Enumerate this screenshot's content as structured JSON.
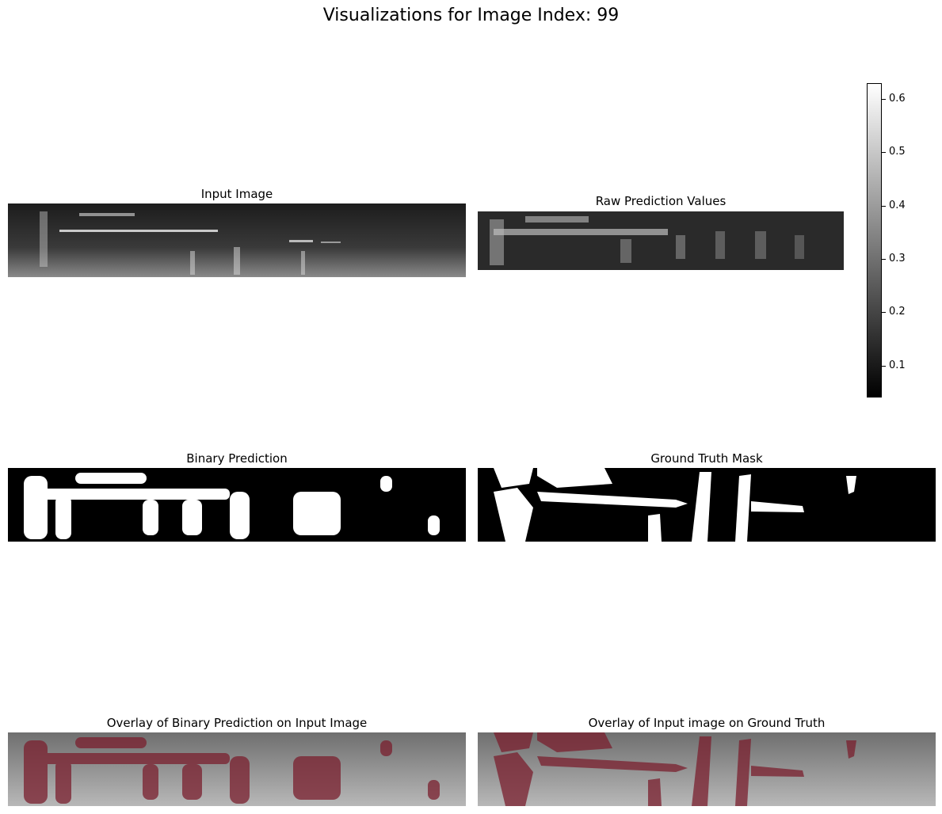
{
  "suptitle": "Visualizations for Image Index: 99",
  "panels": {
    "input_image": {
      "title": "Input Image"
    },
    "raw_prediction": {
      "title": "Raw Prediction Values"
    },
    "binary_prediction": {
      "title": "Binary Prediction"
    },
    "ground_truth": {
      "title": "Ground Truth Mask"
    },
    "overlay_prediction": {
      "title": "Overlay of Binary Prediction on Input Image"
    },
    "overlay_ground_truth": {
      "title": "Overlay of Input image on Ground Truth"
    }
  },
  "colorbar": {
    "colormap": "gray",
    "min": 0.04,
    "max": 0.63,
    "ticks": [
      {
        "value": 0.1,
        "label": "0.1"
      },
      {
        "value": 0.2,
        "label": "0.2"
      },
      {
        "value": 0.3,
        "label": "0.3"
      },
      {
        "value": 0.4,
        "label": "0.4"
      },
      {
        "value": 0.5,
        "label": "0.5"
      },
      {
        "value": 0.6,
        "label": "0.6"
      }
    ]
  },
  "colors": {
    "mask": "#ffffff",
    "background": "#000000",
    "overlay_tint": "#7a1f2e"
  }
}
